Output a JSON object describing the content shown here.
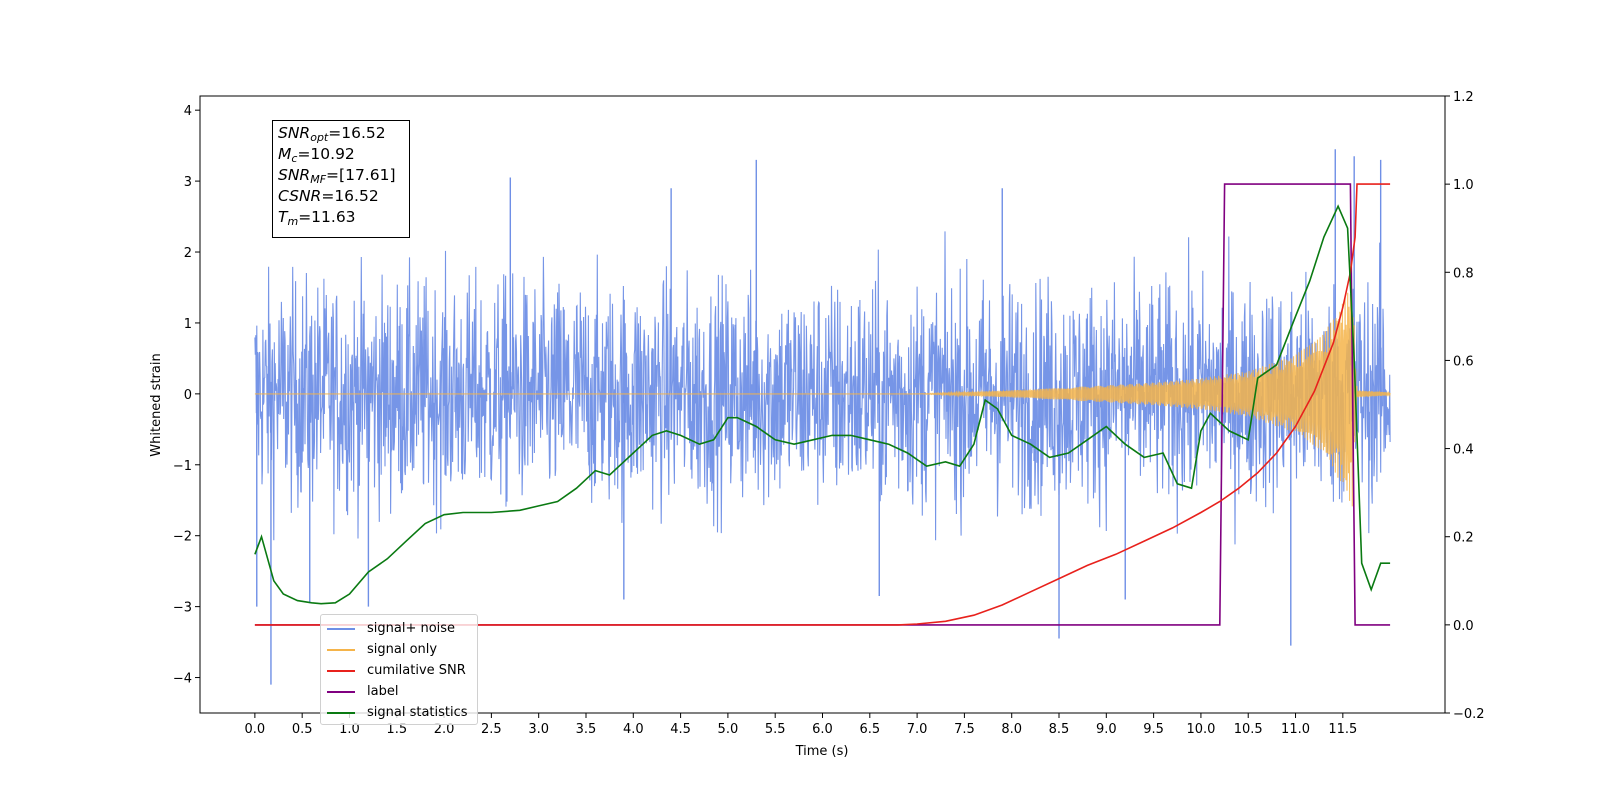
{
  "chart_data": {
    "type": "line",
    "xlabel": "Time (s)",
    "ylabel": "Whitened strain",
    "xlim": [
      -0.58,
      12.58
    ],
    "ylim": [
      -4.5,
      4.2
    ],
    "ylim_right": [
      -0.2,
      1.2
    ],
    "grid": false,
    "legend_placement": "lower-left",
    "x_ticks": [
      "0.0",
      "0.5",
      "1.0",
      "1.5",
      "2.0",
      "2.5",
      "3.0",
      "3.5",
      "4.0",
      "4.5",
      "5.0",
      "5.5",
      "6.0",
      "6.5",
      "7.0",
      "7.5",
      "8.0",
      "8.5",
      "9.0",
      "9.5",
      "10.0",
      "10.5",
      "11.0",
      "11.5"
    ],
    "y_ticks_left": [
      "4",
      "3",
      "2",
      "1",
      "0",
      "−1",
      "−2",
      "−3",
      "−4"
    ],
    "y_ticks_right": [
      "1.2",
      "1.0",
      "0.8",
      "0.6",
      "0.4",
      "0.2",
      "0.0",
      "−0.2"
    ],
    "annotation": {
      "lines": [
        {
          "base": "SNR",
          "sub": "opt",
          "value": "=16.52"
        },
        {
          "base": "M",
          "sub": "c",
          "value": "=10.92"
        },
        {
          "base": "SNR",
          "sub": "MF",
          "value": "=[17.61]"
        },
        {
          "base": "CSNR",
          "sub": "",
          "value": "=16.52"
        },
        {
          "base": "T",
          "sub": "m",
          "value": "=11.63"
        }
      ]
    },
    "series": [
      {
        "name": "signal+ noise",
        "color": "#6f8fe6",
        "axis": "left",
        "description_range": [
          -1.7,
          1.7
        ],
        "spikes": [
          [
            0.02,
            -3.0
          ],
          [
            0.17,
            -4.1
          ],
          [
            0.58,
            -2.95
          ],
          [
            1.2,
            -3.0
          ],
          [
            3.9,
            -2.9
          ],
          [
            5.3,
            3.3
          ],
          [
            7.9,
            2.9
          ],
          [
            8.5,
            -3.45
          ],
          [
            9.2,
            -2.9
          ],
          [
            10.95,
            -3.55
          ],
          [
            11.42,
            3.45
          ],
          [
            11.62,
            3.35
          ],
          [
            11.9,
            3.3
          ],
          [
            6.6,
            -2.85
          ],
          [
            4.4,
            2.9
          ],
          [
            2.7,
            3.05
          ]
        ]
      },
      {
        "name": "signal only",
        "color": "#f5b44a",
        "axis": "left",
        "envelope": {
          "x": [
            7.0,
            8.0,
            9.0,
            9.5,
            10.0,
            10.5,
            11.0,
            11.3,
            11.5,
            11.6,
            11.65,
            12.0
          ],
          "amp": [
            0.0,
            0.05,
            0.12,
            0.16,
            0.22,
            0.32,
            0.55,
            0.85,
            1.3,
            1.6,
            0.05,
            0.02
          ]
        }
      },
      {
        "name": "cumilative SNR",
        "color": "#e8211c",
        "axis": "right",
        "x": [
          0.0,
          6.8,
          7.0,
          7.3,
          7.6,
          7.9,
          8.2,
          8.5,
          8.8,
          9.1,
          9.4,
          9.7,
          10.0,
          10.2,
          10.4,
          10.6,
          10.8,
          11.0,
          11.2,
          11.4,
          11.5,
          11.58,
          11.63,
          11.65,
          12.0
        ],
        "y": [
          0.0,
          0.0,
          0.002,
          0.008,
          0.022,
          0.045,
          0.075,
          0.105,
          0.135,
          0.16,
          0.19,
          0.22,
          0.255,
          0.28,
          0.31,
          0.345,
          0.39,
          0.45,
          0.53,
          0.64,
          0.72,
          0.8,
          0.88,
          1.0,
          1.0
        ]
      },
      {
        "name": "label",
        "color": "#800080",
        "axis": "right",
        "x": [
          0.0,
          10.2,
          10.25,
          11.58,
          11.63,
          12.0
        ],
        "y": [
          0.0,
          0.0,
          1.0,
          1.0,
          0.0,
          0.0
        ]
      },
      {
        "name": "signal statistics",
        "color": "#0a7a12",
        "axis": "right",
        "x": [
          0.0,
          0.07,
          0.2,
          0.3,
          0.45,
          0.6,
          0.7,
          0.85,
          1.0,
          1.2,
          1.4,
          1.6,
          1.8,
          2.0,
          2.2,
          2.5,
          2.8,
          3.0,
          3.2,
          3.4,
          3.6,
          3.75,
          3.9,
          4.0,
          4.2,
          4.35,
          4.5,
          4.7,
          4.85,
          5.0,
          5.1,
          5.3,
          5.5,
          5.7,
          5.9,
          6.1,
          6.3,
          6.5,
          6.7,
          6.9,
          7.1,
          7.3,
          7.45,
          7.6,
          7.72,
          7.85,
          8.0,
          8.2,
          8.4,
          8.6,
          8.8,
          9.0,
          9.2,
          9.4,
          9.6,
          9.75,
          9.9,
          10.0,
          10.1,
          10.3,
          10.5,
          10.6,
          10.8,
          11.0,
          11.15,
          11.3,
          11.45,
          11.55,
          11.62,
          11.7,
          11.8,
          11.9,
          12.0
        ],
        "y": [
          0.16,
          0.2,
          0.1,
          0.07,
          0.055,
          0.05,
          0.048,
          0.05,
          0.07,
          0.12,
          0.15,
          0.19,
          0.23,
          0.25,
          0.255,
          0.255,
          0.26,
          0.27,
          0.28,
          0.31,
          0.35,
          0.34,
          0.37,
          0.39,
          0.43,
          0.44,
          0.43,
          0.41,
          0.42,
          0.47,
          0.47,
          0.45,
          0.42,
          0.41,
          0.42,
          0.43,
          0.43,
          0.42,
          0.41,
          0.39,
          0.36,
          0.37,
          0.36,
          0.41,
          0.51,
          0.49,
          0.43,
          0.41,
          0.38,
          0.39,
          0.42,
          0.45,
          0.41,
          0.38,
          0.39,
          0.32,
          0.31,
          0.44,
          0.48,
          0.44,
          0.42,
          0.56,
          0.59,
          0.7,
          0.78,
          0.88,
          0.95,
          0.9,
          0.6,
          0.14,
          0.08,
          0.14,
          0.14
        ]
      }
    ]
  }
}
